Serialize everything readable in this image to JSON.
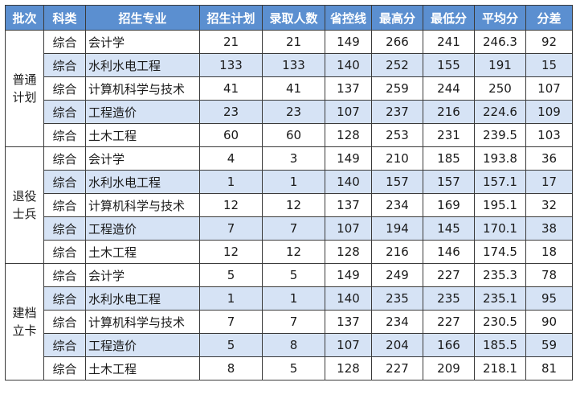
{
  "table": {
    "headers": [
      "批次",
      "科类",
      "招生专业",
      "招生计划",
      "录取人数",
      "省控线",
      "最高分",
      "最低分",
      "平均分",
      "分差"
    ],
    "groups": [
      {
        "batch": "普通计划",
        "rows": [
          [
            "综合",
            "会计学",
            "21",
            "21",
            "149",
            "266",
            "241",
            "246.3",
            "92"
          ],
          [
            "综合",
            "水利水电工程",
            "133",
            "133",
            "140",
            "252",
            "155",
            "191",
            "15"
          ],
          [
            "综合",
            "计算机科学与技术",
            "41",
            "41",
            "137",
            "259",
            "244",
            "250",
            "107"
          ],
          [
            "综合",
            "工程造价",
            "23",
            "23",
            "107",
            "237",
            "216",
            "224.6",
            "109"
          ],
          [
            "综合",
            "土木工程",
            "60",
            "60",
            "128",
            "253",
            "231",
            "239.5",
            "103"
          ]
        ]
      },
      {
        "batch": "退役士兵",
        "rows": [
          [
            "综合",
            "会计学",
            "4",
            "3",
            "149",
            "210",
            "185",
            "193.8",
            "36"
          ],
          [
            "综合",
            "水利水电工程",
            "1",
            "1",
            "140",
            "157",
            "157",
            "157.1",
            "17"
          ],
          [
            "综合",
            "计算机科学与技术",
            "12",
            "12",
            "137",
            "234",
            "169",
            "195.1",
            "32"
          ],
          [
            "综合",
            "工程造价",
            "7",
            "7",
            "107",
            "194",
            "145",
            "170.1",
            "38"
          ],
          [
            "综合",
            "土木工程",
            "12",
            "12",
            "128",
            "216",
            "146",
            "174.5",
            "18"
          ]
        ]
      },
      {
        "batch": "建档立卡",
        "rows": [
          [
            "综合",
            "会计学",
            "5",
            "5",
            "149",
            "249",
            "227",
            "235.3",
            "78"
          ],
          [
            "综合",
            "水利水电工程",
            "1",
            "1",
            "140",
            "235",
            "235",
            "235.1",
            "95"
          ],
          [
            "综合",
            "计算机科学与技术",
            "7",
            "7",
            "137",
            "234",
            "227",
            "230.5",
            "90"
          ],
          [
            "综合",
            "工程造价",
            "5",
            "8",
            "107",
            "204",
            "166",
            "185.5",
            "59"
          ],
          [
            "综合",
            "土木工程",
            "8",
            "5",
            "128",
            "227",
            "209",
            "218.1",
            "81"
          ]
        ]
      }
    ]
  },
  "colors": {
    "header_bg": "#5b8fd0",
    "header_text": "#ffffff",
    "stripe": "#d6e3f5",
    "border": "#3a3a3a"
  }
}
